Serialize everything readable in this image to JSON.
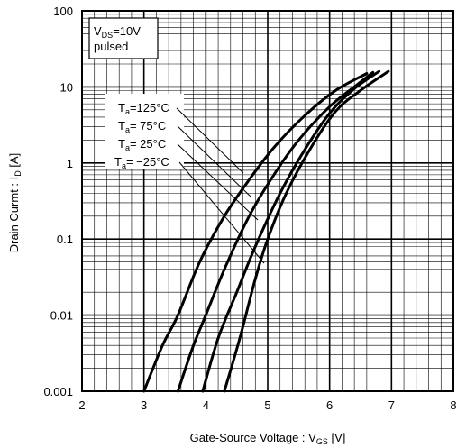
{
  "chart_data": {
    "type": "line",
    "xlabel": "Gate-Source Voltage :  V",
    "xlabel_sub": "GS",
    "xlabel_unit": " [V]",
    "ylabel": "Drain Curmt : I",
    "ylabel_sub": "D",
    "ylabel_unit": " [A]",
    "xlim": [
      2,
      8
    ],
    "ylim": [
      0.001,
      100
    ],
    "yscale": "log",
    "grid": true,
    "x_ticks": [
      "2",
      "3",
      "4",
      "5",
      "6",
      "7",
      "8"
    ],
    "y_ticks": [
      "0.001",
      "0.01",
      "0.1",
      "1",
      "10",
      "100"
    ],
    "conditions": {
      "line1_main": "V",
      "line1_sub": "DS",
      "line1_rest": "=10V",
      "line2": "pulsed"
    },
    "series": [
      {
        "name": "Ta=125°C",
        "label_main": "T",
        "label_sub": "a",
        "label_rest": "=125°C",
        "x": [
          3.0,
          3.3,
          3.55,
          3.9,
          4.3,
          4.7,
          5.1,
          5.6,
          6.1,
          6.6
        ],
        "y": [
          0.001,
          0.004,
          0.01,
          0.05,
          0.2,
          0.6,
          1.6,
          4.2,
          9.0,
          15.0
        ]
      },
      {
        "name": "Ta=75°C",
        "label_main": "T",
        "label_sub": "a",
        "label_rest": "= 75°C",
        "x": [
          3.55,
          3.8,
          4.0,
          4.3,
          4.7,
          5.1,
          5.5,
          6.0,
          6.4,
          6.7
        ],
        "y": [
          0.001,
          0.004,
          0.01,
          0.04,
          0.2,
          0.7,
          2.0,
          5.5,
          10.0,
          15.5
        ]
      },
      {
        "name": "Ta=25°C",
        "label_main": "T",
        "label_sub": "a",
        "label_rest": "= 25°C",
        "x": [
          3.95,
          4.2,
          4.5,
          4.8,
          5.2,
          5.6,
          6.0,
          6.4,
          6.8
        ],
        "y": [
          0.001,
          0.005,
          0.02,
          0.08,
          0.4,
          1.5,
          4.5,
          9.5,
          16.0
        ]
      },
      {
        "name": "Ta=-25°C",
        "label_main": "T",
        "label_sub": "a",
        "label_rest": "= −25°C",
        "x": [
          4.3,
          4.55,
          4.8,
          5.0,
          5.3,
          5.7,
          6.1,
          6.5,
          6.95
        ],
        "y": [
          0.001,
          0.005,
          0.03,
          0.1,
          0.4,
          1.6,
          4.8,
          9.0,
          16.0
        ]
      }
    ]
  }
}
